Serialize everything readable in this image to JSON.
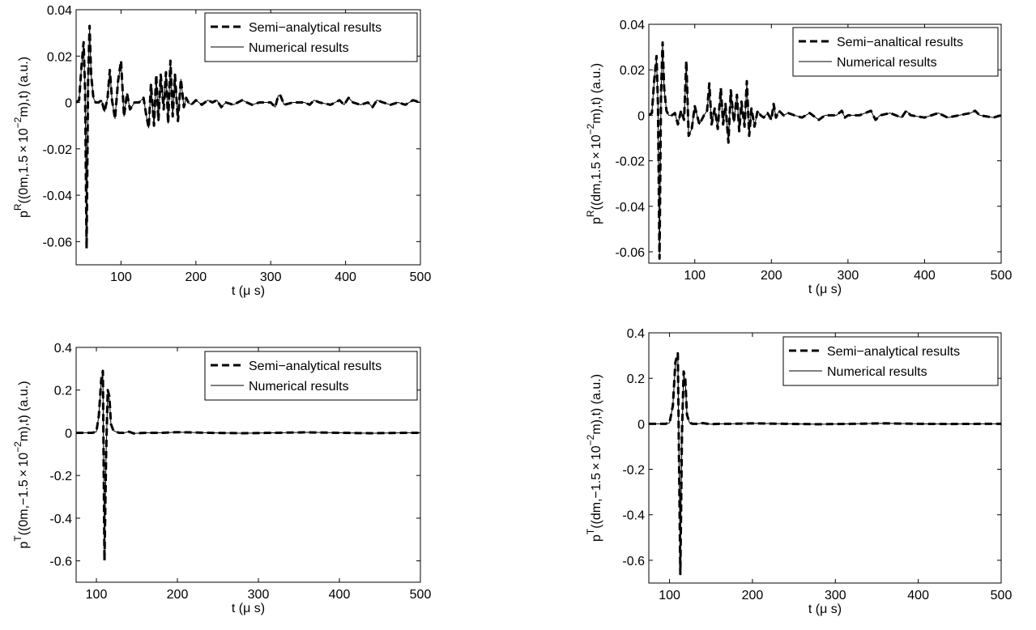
{
  "chart_data": [
    {
      "id": "panel-top-left",
      "type": "line",
      "xlabel": "t (μ s)",
      "ylabel": "p^R((0m,1.5×10^{-2}m),t) (a.u.)",
      "ylabel_parts": {
        "sym": "p",
        "sup1": "R",
        "pre": "((0m,1.5 × 10",
        "sup2": "−2",
        "post": "m),t) (a.u.)"
      },
      "xlim": [
        40,
        500
      ],
      "ylim": [
        -0.07,
        0.04
      ],
      "xticks": [
        100,
        200,
        300,
        400,
        500
      ],
      "yticks": [
        -0.06,
        -0.04,
        -0.02,
        0,
        0.02,
        0.04
      ],
      "ytick_labels": [
        "-0.06",
        "-0.04",
        "-0.02",
        "0",
        "0.02",
        "0.04"
      ],
      "grid": false,
      "legend_position": "top-right",
      "series": [
        {
          "name": "Semi−analytical results",
          "style": "dashed",
          "x": [
            40,
            44,
            47,
            50,
            52,
            54,
            56,
            58,
            60,
            63,
            66,
            70,
            74,
            78,
            82,
            85,
            88,
            92,
            96,
            100,
            104,
            108,
            112,
            118,
            124,
            130,
            134,
            137,
            140,
            144,
            147,
            150,
            153,
            157,
            160,
            163,
            166,
            169,
            172,
            176,
            180,
            184,
            187,
            190,
            194,
            200,
            208,
            216,
            222,
            228,
            234,
            240,
            250,
            262,
            268,
            275,
            285,
            300,
            306,
            310,
            313,
            318,
            330,
            345,
            352,
            358,
            365,
            380,
            392,
            398,
            404,
            410,
            420,
            430,
            436,
            442,
            450,
            460,
            470,
            480,
            490,
            500
          ],
          "y": [
            0,
            0.001,
            0.015,
            0.026,
            0.005,
            -0.063,
            0.01,
            0.033,
            0.012,
            0.002,
            0,
            0,
            0.001,
            -0.004,
            0.002,
            0.014,
            0.001,
            -0.007,
            0.009,
            0.018,
            -0.006,
            0.004,
            -0.003,
            0,
            0,
            0.002,
            -0.006,
            -0.011,
            0.008,
            -0.01,
            0.012,
            -0.008,
            0.012,
            -0.003,
            0.013,
            -0.009,
            0.018,
            -0.006,
            0.012,
            -0.008,
            0.01,
            -0.002,
            0.002,
            0,
            -0.001,
            0.001,
            -0.001,
            0.001,
            0,
            0.001,
            -0.002,
            0,
            -0.001,
            0.001,
            0,
            -0.001,
            0,
            0,
            -0.002,
            0.003,
            0.003,
            -0.001,
            0,
            0,
            -0.001,
            0.001,
            0,
            -0.001,
            0.001,
            -0.001,
            0.002,
            0,
            -0.001,
            0,
            -0.002,
            0.001,
            0,
            -0.001,
            0,
            -0.001,
            0.001,
            0
          ]
        },
        {
          "name": "Numerical results",
          "style": "solid",
          "x": [
            40,
            44,
            47,
            50,
            52,
            54,
            56,
            58,
            60,
            63,
            66,
            70,
            74,
            78,
            82,
            85,
            88,
            92,
            96,
            100,
            104,
            108,
            112,
            118,
            124,
            130,
            134,
            137,
            140,
            144,
            147,
            150,
            153,
            157,
            160,
            163,
            166,
            169,
            172,
            176,
            180,
            184,
            187,
            190,
            194,
            200,
            208,
            216,
            222,
            228,
            234,
            240,
            250,
            262,
            268,
            275,
            285,
            300,
            306,
            310,
            313,
            318,
            330,
            345,
            352,
            358,
            365,
            380,
            392,
            398,
            404,
            410,
            420,
            430,
            436,
            442,
            450,
            460,
            470,
            480,
            490,
            500
          ],
          "y": [
            0,
            0.001,
            0.015,
            0.025,
            0.005,
            -0.061,
            0.01,
            0.032,
            0.012,
            0.002,
            0,
            0,
            0.001,
            -0.004,
            0.002,
            0.014,
            0.001,
            -0.007,
            0.009,
            0.017,
            -0.006,
            0.004,
            -0.003,
            0,
            0,
            0.002,
            -0.006,
            -0.011,
            0.008,
            -0.01,
            0.011,
            -0.008,
            0.012,
            -0.003,
            0.013,
            -0.009,
            0.017,
            -0.006,
            0.012,
            -0.008,
            0.01,
            -0.002,
            0.002,
            0,
            -0.001,
            0.001,
            -0.001,
            0.001,
            0,
            0.001,
            -0.002,
            0,
            -0.001,
            0.001,
            0,
            -0.001,
            0,
            0,
            -0.002,
            0.003,
            0.003,
            -0.001,
            0,
            0,
            -0.001,
            0.001,
            0,
            -0.001,
            0.001,
            -0.001,
            0.002,
            0,
            -0.001,
            0,
            -0.002,
            0.001,
            0,
            -0.001,
            0,
            -0.001,
            0.001,
            0
          ]
        }
      ]
    },
    {
      "id": "panel-top-right",
      "type": "line",
      "xlabel": "t (μ s)",
      "ylabel": "p^R((dm,1.5×10^{-2}m),t) (a.u.)",
      "ylabel_parts": {
        "sym": "p",
        "sup1": "R",
        "pre": "((dm,1.5 × 10",
        "sup2": "−2",
        "post": "m),t) (a.u.)"
      },
      "xlim": [
        40,
        500
      ],
      "ylim": [
        -0.065,
        0.04
      ],
      "xticks": [
        100,
        200,
        300,
        400,
        500
      ],
      "yticks": [
        -0.06,
        -0.04,
        -0.02,
        0,
        0.02,
        0.04
      ],
      "ytick_labels": [
        "-0.06",
        "-0.04",
        "-0.02",
        "0",
        "0.02",
        "0.04"
      ],
      "grid": false,
      "legend_position": "top-right",
      "series": [
        {
          "name": "Semi−analtical results",
          "style": "dashed",
          "x": [
            40,
            44,
            47,
            50,
            52,
            54,
            56,
            58,
            60,
            63,
            66,
            70,
            74,
            78,
            82,
            86,
            89,
            92,
            96,
            100,
            106,
            112,
            116,
            119,
            122,
            126,
            130,
            134,
            137,
            140,
            144,
            147,
            151,
            155,
            158,
            161,
            165,
            168,
            171,
            174,
            178,
            182,
            186,
            190,
            195,
            200,
            203,
            206,
            210,
            216,
            222,
            230,
            240,
            250,
            262,
            270,
            285,
            292,
            296,
            300,
            315,
            330,
            336,
            342,
            355,
            370,
            376,
            382,
            400,
            418,
            424,
            430,
            445,
            460,
            466,
            472,
            490,
            500
          ],
          "y": [
            0,
            0.001,
            0.015,
            0.026,
            0.005,
            -0.063,
            0.01,
            0.032,
            0.012,
            0.002,
            0,
            0,
            0.001,
            -0.004,
            0.002,
            -0.002,
            0.024,
            -0.009,
            -0.006,
            0.004,
            -0.004,
            0,
            0.002,
            0.014,
            -0.004,
            0.003,
            -0.006,
            0.012,
            -0.004,
            0.005,
            -0.012,
            0.011,
            -0.003,
            0.009,
            -0.007,
            0.006,
            -0.005,
            0.015,
            -0.009,
            0.003,
            -0.005,
            0.002,
            0,
            -0.001,
            0.001,
            -0.002,
            0.005,
            -0.001,
            0.002,
            0,
            0.001,
            0,
            -0.001,
            0.001,
            -0.002,
            0,
            0,
            0.002,
            -0.001,
            0,
            0,
            0.002,
            -0.002,
            0,
            0.001,
            -0.001,
            0.002,
            0,
            -0.001,
            0.001,
            0,
            -0.001,
            0,
            0.001,
            0.002,
            0,
            -0.001,
            0
          ]
        },
        {
          "name": "Numerical results",
          "style": "solid",
          "x": [
            40,
            44,
            47,
            50,
            52,
            54,
            56,
            58,
            60,
            63,
            66,
            70,
            74,
            78,
            82,
            86,
            89,
            92,
            96,
            100,
            106,
            112,
            116,
            119,
            122,
            126,
            130,
            134,
            137,
            140,
            144,
            147,
            151,
            155,
            158,
            161,
            165,
            168,
            171,
            174,
            178,
            182,
            186,
            190,
            195,
            200,
            203,
            206,
            210,
            216,
            222,
            230,
            240,
            250,
            262,
            270,
            285,
            292,
            296,
            300,
            315,
            330,
            336,
            342,
            355,
            370,
            376,
            382,
            400,
            418,
            424,
            430,
            445,
            460,
            466,
            472,
            490,
            500
          ],
          "y": [
            0,
            0.001,
            0.015,
            0.025,
            0.005,
            -0.061,
            0.01,
            0.031,
            0.012,
            0.002,
            0,
            0,
            0.001,
            -0.004,
            0.002,
            -0.002,
            0.023,
            -0.009,
            -0.006,
            0.004,
            -0.004,
            0,
            0.002,
            0.013,
            -0.004,
            0.003,
            -0.006,
            0.011,
            -0.004,
            0.005,
            -0.012,
            0.011,
            -0.003,
            0.009,
            -0.007,
            0.006,
            -0.005,
            0.014,
            -0.009,
            0.003,
            -0.005,
            0.002,
            0,
            -0.001,
            0.001,
            -0.002,
            0.005,
            -0.001,
            0.002,
            0,
            0.001,
            0,
            -0.001,
            0.001,
            -0.002,
            0,
            0,
            0.002,
            -0.001,
            0,
            0,
            0.002,
            -0.002,
            0,
            0.001,
            -0.001,
            0.002,
            0,
            -0.001,
            0.001,
            0,
            -0.001,
            0,
            0.001,
            0.002,
            0,
            -0.001,
            0
          ]
        }
      ]
    },
    {
      "id": "panel-bottom-left",
      "type": "line",
      "xlabel": "t (μ s)",
      "ylabel": "p^T((0m,-1.5×10^{-2}m),t) (a.u.)",
      "ylabel_parts": {
        "sym": "p",
        "sup1": "T",
        "pre": "((0m,−1.5 × 10",
        "sup2": "−2",
        "post": "m),t) (a.u.)"
      },
      "xlim": [
        75,
        500
      ],
      "ylim": [
        -0.7,
        0.4
      ],
      "xticks": [
        100,
        200,
        300,
        400,
        500
      ],
      "yticks": [
        -0.6,
        -0.4,
        -0.2,
        0,
        0.2,
        0.4
      ],
      "ytick_labels": [
        "-0.6",
        "-0.4",
        "-0.2",
        "0",
        "0.2",
        "0.4"
      ],
      "grid": false,
      "legend_position": "top-right",
      "series": [
        {
          "name": "Semi−analytical results",
          "style": "dashed",
          "x": [
            75,
            95,
            100,
            103,
            106,
            108,
            110,
            112,
            114,
            116,
            118,
            121,
            124,
            128,
            134,
            140,
            146,
            160,
            180,
            200,
            240,
            280,
            320,
            360,
            400,
            440,
            480,
            500
          ],
          "y": [
            0,
            0,
            0.005,
            0.08,
            0.25,
            0.29,
            -0.6,
            -0.1,
            0.2,
            0.17,
            0.04,
            0.01,
            0.005,
            0,
            0,
            0.005,
            -0.003,
            0,
            0,
            0.003,
            0,
            -0.002,
            0,
            0.002,
            0,
            -0.002,
            0,
            0
          ]
        },
        {
          "name": "Numerical results",
          "style": "solid",
          "x": [
            75,
            95,
            100,
            103,
            106,
            108,
            110,
            112,
            114,
            116,
            118,
            121,
            124,
            128,
            134,
            140,
            146,
            160,
            180,
            200,
            240,
            280,
            320,
            360,
            400,
            440,
            480,
            500
          ],
          "y": [
            0,
            0,
            0.005,
            0.08,
            0.24,
            0.28,
            -0.58,
            -0.1,
            0.19,
            0.16,
            0.04,
            0.01,
            0.005,
            0,
            0,
            0.005,
            -0.003,
            0,
            0,
            0.003,
            0,
            -0.002,
            0,
            0.002,
            0,
            -0.002,
            0,
            0
          ]
        }
      ]
    },
    {
      "id": "panel-bottom-right",
      "type": "line",
      "xlabel": "t (μ s)",
      "ylabel": "p^T((dm,-1.5×10^{-2}m),t) (a.u.)",
      "ylabel_parts": {
        "sym": "p",
        "sup1": "T",
        "pre": "((dm,−1.5 × 10",
        "sup2": "−2",
        "post": "m),t) (a.u.)"
      },
      "xlim": [
        75,
        500
      ],
      "ylim": [
        -0.7,
        0.4
      ],
      "xticks": [
        100,
        200,
        300,
        400,
        500
      ],
      "yticks": [
        -0.6,
        -0.4,
        -0.2,
        0,
        0.2,
        0.4
      ],
      "ytick_labels": [
        "-0.6",
        "-0.4",
        "-0.2",
        "0",
        "0.2",
        "0.4"
      ],
      "grid": false,
      "legend_position": "top-right",
      "series": [
        {
          "name": "Semi−analytical results",
          "style": "dashed",
          "x": [
            75,
            95,
            100,
            104,
            107,
            110,
            113,
            115,
            117,
            119,
            121,
            124,
            128,
            134,
            140,
            150,
            160,
            175,
            200,
            240,
            280,
            320,
            360,
            400,
            440,
            480,
            500
          ],
          "y": [
            0,
            0,
            0.004,
            0.08,
            0.27,
            0.31,
            -0.66,
            -0.05,
            0.23,
            0.2,
            0.04,
            0.005,
            0,
            0,
            0.003,
            -0.002,
            0,
            0,
            0.002,
            0,
            -0.002,
            0,
            0.002,
            0,
            -0.001,
            0,
            0
          ]
        },
        {
          "name": "Numerical results",
          "style": "solid",
          "x": [
            75,
            95,
            100,
            104,
            107,
            110,
            113,
            115,
            117,
            119,
            121,
            124,
            128,
            134,
            140,
            150,
            160,
            175,
            200,
            240,
            280,
            320,
            360,
            400,
            440,
            480,
            500
          ],
          "y": [
            0,
            0,
            0.004,
            0.08,
            0.26,
            0.3,
            -0.63,
            -0.05,
            0.22,
            0.19,
            0.04,
            0.005,
            0,
            0,
            0.003,
            -0.002,
            0,
            0,
            0.002,
            0,
            -0.002,
            0,
            0.002,
            0,
            -0.001,
            0,
            0
          ]
        }
      ]
    }
  ]
}
